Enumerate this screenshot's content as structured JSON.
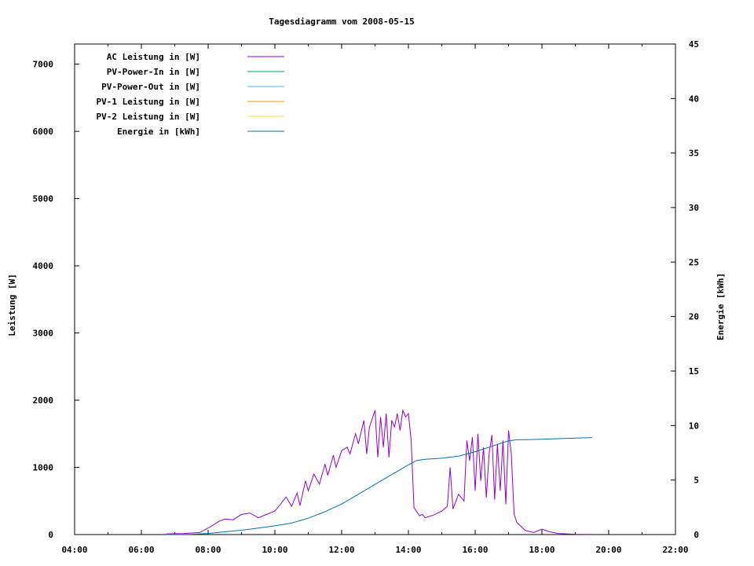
{
  "chart_data": {
    "type": "line",
    "title": "Tagesdiagramm vom 2008-05-15",
    "ylabel": "Leistung [W]",
    "y2label": "Energie [kWh]",
    "xlim": [
      "04:00",
      "22:00"
    ],
    "ylim": [
      0,
      7300
    ],
    "y2lim": [
      0,
      45
    ],
    "x_ticks": [
      "04:00",
      "06:00",
      "08:00",
      "10:00",
      "12:00",
      "14:00",
      "16:00",
      "18:00",
      "20:00",
      "22:00"
    ],
    "y_ticks": [
      "0",
      "1000",
      "2000",
      "3000",
      "4000",
      "5000",
      "6000",
      "7000"
    ],
    "y2_ticks": [
      "0",
      "5",
      "10",
      "15",
      "20",
      "25",
      "30",
      "35",
      "40",
      "45"
    ],
    "legend_position": "top-left",
    "grid": false,
    "series": [
      {
        "name": "AC Leistung in [W]",
        "color": "#9400d3",
        "axis": "left",
        "x": [
          "06:45",
          "07:15",
          "07:45",
          "08:05",
          "08:20",
          "08:30",
          "08:45",
          "09:00",
          "09:15",
          "09:30",
          "09:45",
          "10:00",
          "10:10",
          "10:20",
          "10:30",
          "10:40",
          "10:45",
          "10:55",
          "11:00",
          "11:10",
          "11:20",
          "11:30",
          "11:35",
          "11:45",
          "11:50",
          "12:00",
          "12:10",
          "12:15",
          "12:25",
          "12:30",
          "12:40",
          "12:45",
          "12:50",
          "13:00",
          "13:05",
          "13:10",
          "13:15",
          "13:20",
          "13:25",
          "13:30",
          "13:35",
          "13:40",
          "13:45",
          "13:50",
          "13:55",
          "14:00",
          "14:05",
          "14:10",
          "14:20",
          "14:25",
          "14:30",
          "14:45",
          "15:00",
          "15:10",
          "15:15",
          "15:20",
          "15:30",
          "15:40",
          "15:45",
          "15:50",
          "15:55",
          "16:00",
          "16:05",
          "16:10",
          "16:15",
          "16:20",
          "16:25",
          "16:30",
          "16:35",
          "16:40",
          "16:45",
          "16:50",
          "16:55",
          "17:00",
          "17:05",
          "17:10",
          "17:15",
          "17:30",
          "17:45",
          "18:00",
          "18:15",
          "18:30",
          "18:45",
          "19:00",
          "19:30"
        ],
        "values": [
          10,
          15,
          30,
          120,
          200,
          230,
          220,
          300,
          320,
          250,
          300,
          350,
          450,
          560,
          420,
          620,
          430,
          800,
          650,
          900,
          750,
          1050,
          880,
          1180,
          1000,
          1250,
          1300,
          1200,
          1500,
          1350,
          1700,
          1200,
          1600,
          1850,
          1150,
          1750,
          1300,
          1800,
          1150,
          1700,
          1600,
          1800,
          1550,
          1850,
          1750,
          1800,
          1400,
          400,
          280,
          300,
          250,
          290,
          350,
          420,
          1000,
          380,
          600,
          500,
          1400,
          1100,
          1450,
          650,
          1500,
          800,
          1300,
          550,
          1200,
          1480,
          520,
          1350,
          650,
          1400,
          450,
          1550,
          1200,
          300,
          180,
          60,
          30,
          80,
          40,
          15,
          10,
          5,
          3
        ]
      },
      {
        "name": "PV-Power-In in [W]",
        "color": "#009e73",
        "axis": "left",
        "x": [],
        "values": []
      },
      {
        "name": "PV-Power-Out in [W]",
        "color": "#56b4e9",
        "axis": "left",
        "x": [],
        "values": []
      },
      {
        "name": "PV-1 Leistung in [W]",
        "color": "#e69f00",
        "axis": "left",
        "x": [],
        "values": []
      },
      {
        "name": "PV-2 Leistung in [W]",
        "color": "#f0e442",
        "axis": "left",
        "x": [],
        "values": []
      },
      {
        "name": "Energie in [kWh]",
        "color": "#0072b2",
        "axis": "right",
        "x": [
          "06:45",
          "07:30",
          "08:00",
          "08:30",
          "09:00",
          "09:30",
          "10:00",
          "10:30",
          "11:00",
          "11:30",
          "12:00",
          "12:30",
          "13:00",
          "13:30",
          "14:00",
          "14:15",
          "14:30",
          "15:00",
          "15:30",
          "16:00",
          "16:30",
          "17:00",
          "17:15",
          "17:30",
          "18:00",
          "18:30",
          "19:00",
          "19:30"
        ],
        "values": [
          0,
          0.03,
          0.1,
          0.25,
          0.4,
          0.6,
          0.8,
          1.05,
          1.5,
          2.1,
          2.8,
          3.7,
          4.6,
          5.5,
          6.4,
          6.8,
          6.9,
          7.0,
          7.2,
          7.6,
          8.1,
          8.6,
          8.7,
          8.7,
          8.75,
          8.8,
          8.85,
          8.9
        ]
      }
    ]
  }
}
